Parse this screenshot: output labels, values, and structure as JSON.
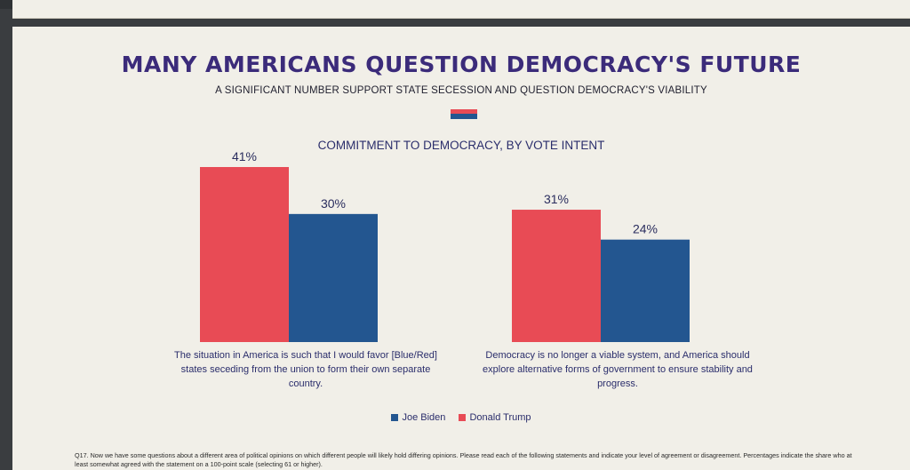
{
  "header": {
    "title": "MANY AMERICANS QUESTION DEMOCRACY'S FUTURE",
    "subtitle": "A SIGNIFICANT NUMBER SUPPORT STATE SECESSION AND QUESTION DEMOCRACY'S VIABILITY"
  },
  "colors": {
    "trump": "#e84b55",
    "biden": "#235690",
    "title": "#3b2b7a"
  },
  "chart_data": {
    "type": "bar",
    "title": "COMMITMENT TO DEMOCRACY, BY VOTE INTENT",
    "categories": [
      "The situation in America is such that I would favor [Blue/Red] states seceding from the union to form their own separate country.",
      "Democracy is no longer a viable system, and America should explore alternative forms of government to ensure stability and progress."
    ],
    "series": [
      {
        "name": "Donald Trump",
        "values": [
          41,
          31
        ],
        "labels": [
          "41%",
          "31%"
        ]
      },
      {
        "name": "Joe Biden",
        "values": [
          30,
          24
        ],
        "labels": [
          "30%",
          "24%"
        ]
      }
    ],
    "ylim": [
      0,
      45
    ],
    "grid": false,
    "legend": "bottom"
  },
  "legend": {
    "biden": "Joe Biden",
    "trump": "Donald Trump"
  },
  "footnote": "Q17. Now we have some questions about a different area of political opinions on which different people will likely hold differing opinions. Please read each of the following statements and indicate your level of agreement or disagreement. Percentages indicate the share who at least somewhat agreed with the statement on a 100-point scale (selecting 61 or higher)."
}
